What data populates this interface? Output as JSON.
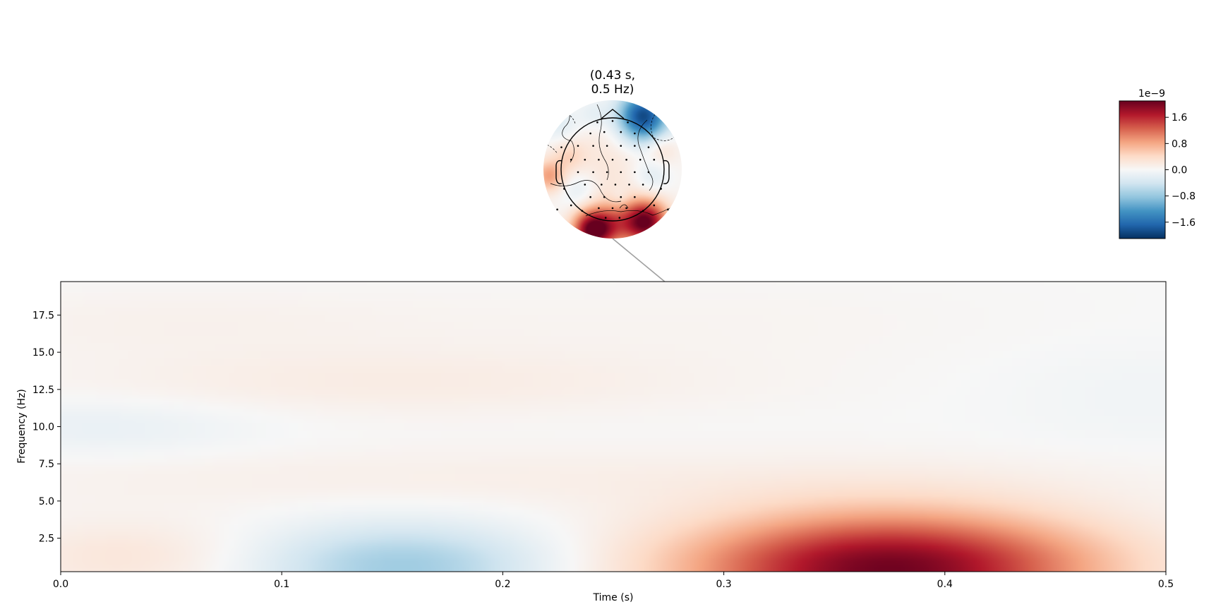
{
  "chart_data": [
    {
      "type": "heatmap",
      "title": "",
      "xlabel": "Time (s)",
      "ylabel": "Frequency (Hz)",
      "xlim": [
        0.0,
        0.5
      ],
      "ylim": [
        0.25,
        19.75
      ],
      "xticks": [
        0.0,
        0.1,
        0.2,
        0.3,
        0.4,
        0.5
      ],
      "xtick_labels": [
        "0.0",
        "0.1",
        "0.2",
        "0.3",
        "0.4",
        "0.5"
      ],
      "yticks": [
        2.5,
        5.0,
        7.5,
        10.0,
        12.5,
        15.0,
        17.5
      ],
      "ytick_labels": [
        "2.5",
        "5.0",
        "7.5",
        "10.0",
        "12.5",
        "15.0",
        "17.5"
      ],
      "colormap": "RdBu_r",
      "vlim": [
        -2.1e-09,
        2.1e-09
      ],
      "blobs": [
        {
          "t": 0.375,
          "f": 0.5,
          "amp": 2.05e-09,
          "st": 0.065,
          "sf": 2.6
        },
        {
          "t": 0.155,
          "f": 0.6,
          "amp": -7.5e-10,
          "st": 0.045,
          "sf": 2.0
        },
        {
          "t": 0.03,
          "f": 1.2,
          "amp": 2.5e-10,
          "st": 0.04,
          "sf": 1.8
        },
        {
          "t": 0.2,
          "f": 6.5,
          "amp": 1.2e-10,
          "st": 0.2,
          "sf": 1.5
        },
        {
          "t": 0.02,
          "f": 10.0,
          "amp": -1.6e-10,
          "st": 0.05,
          "sf": 1.4
        },
        {
          "t": 0.15,
          "f": 13.0,
          "amp": 1.6e-10,
          "st": 0.11,
          "sf": 1.6
        },
        {
          "t": 0.05,
          "f": 17.0,
          "amp": 9e-11,
          "st": 0.09,
          "sf": 1.6
        },
        {
          "t": 0.49,
          "f": 12.0,
          "amp": -7e-11,
          "st": 0.05,
          "sf": 2.5
        },
        {
          "t": 0.3,
          "f": 17.0,
          "amp": 5e-11,
          "st": 0.1,
          "sf": 2.0
        }
      ],
      "highlight": {
        "time": 0.43,
        "freq": 0.5,
        "line_color": "#a0a0a0"
      }
    },
    {
      "type": "topomap",
      "title_line1": "(0.43 s,",
      "title_line2": "0.5 Hz)",
      "time": 0.43,
      "freq": 0.5,
      "colormap": "RdBu_r",
      "blobs": [
        {
          "x": 0.72,
          "y": 0.88,
          "amp": -2.0,
          "s": 0.13
        },
        {
          "x": 0.35,
          "y": 0.06,
          "amp": 1.9,
          "s": 0.1
        },
        {
          "x": 0.74,
          "y": 0.12,
          "amp": 2.0,
          "s": 0.11
        },
        {
          "x": 0.5,
          "y": 0.1,
          "amp": 0.9,
          "s": 0.12
        },
        {
          "x": 0.04,
          "y": 0.45,
          "amp": 0.8,
          "s": 0.08
        },
        {
          "x": 0.5,
          "y": 0.55,
          "amp": 0.25,
          "s": 0.3
        },
        {
          "x": 0.25,
          "y": 0.35,
          "amp": -0.3,
          "s": 0.1
        },
        {
          "x": 0.78,
          "y": 0.45,
          "amp": -0.35,
          "s": 0.1
        },
        {
          "x": 0.12,
          "y": 0.82,
          "amp": -0.3,
          "s": 0.1
        },
        {
          "x": 0.36,
          "y": 0.9,
          "amp": -0.25,
          "s": 0.08
        },
        {
          "x": 0.55,
          "y": 0.3,
          "amp": -0.2,
          "s": 0.05
        },
        {
          "x": 0.18,
          "y": 0.6,
          "amp": 0.35,
          "s": 0.08
        },
        {
          "x": 0.85,
          "y": 0.65,
          "amp": 0.3,
          "s": 0.08
        }
      ],
      "sensors": [
        [
          0.39,
          0.84
        ],
        [
          0.5,
          0.85
        ],
        [
          0.61,
          0.84
        ],
        [
          0.34,
          0.76
        ],
        [
          0.44,
          0.77
        ],
        [
          0.56,
          0.77
        ],
        [
          0.66,
          0.76
        ],
        [
          0.13,
          0.66
        ],
        [
          0.25,
          0.67
        ],
        [
          0.36,
          0.67
        ],
        [
          0.46,
          0.67
        ],
        [
          0.56,
          0.67
        ],
        [
          0.66,
          0.67
        ],
        [
          0.76,
          0.66
        ],
        [
          0.2,
          0.57
        ],
        [
          0.3,
          0.57
        ],
        [
          0.4,
          0.57
        ],
        [
          0.5,
          0.57
        ],
        [
          0.6,
          0.57
        ],
        [
          0.7,
          0.57
        ],
        [
          0.8,
          0.57
        ],
        [
          0.25,
          0.48
        ],
        [
          0.36,
          0.48
        ],
        [
          0.46,
          0.48
        ],
        [
          0.56,
          0.48
        ],
        [
          0.66,
          0.48
        ],
        [
          0.76,
          0.48
        ],
        [
          0.3,
          0.39
        ],
        [
          0.42,
          0.39
        ],
        [
          0.52,
          0.39
        ],
        [
          0.62,
          0.39
        ],
        [
          0.72,
          0.39
        ],
        [
          0.15,
          0.36
        ],
        [
          0.85,
          0.36
        ],
        [
          0.34,
          0.3
        ],
        [
          0.44,
          0.3
        ],
        [
          0.56,
          0.3
        ],
        [
          0.66,
          0.3
        ],
        [
          0.2,
          0.24
        ],
        [
          0.4,
          0.22
        ],
        [
          0.5,
          0.22
        ],
        [
          0.6,
          0.22
        ],
        [
          0.8,
          0.24
        ],
        [
          0.1,
          0.21
        ],
        [
          0.9,
          0.21
        ],
        [
          0.45,
          0.15
        ],
        [
          0.55,
          0.15
        ],
        [
          0.28,
          0.2
        ],
        [
          0.72,
          0.2
        ]
      ]
    },
    {
      "type": "colorbar",
      "colormap": "RdBu_r",
      "vlim": [
        -2.1e-09,
        2.1e-09
      ],
      "exponent_label": "1e−9",
      "ticks": [
        -1.6,
        -0.8,
        0.0,
        0.8,
        1.6
      ],
      "tick_labels": [
        "−1.6",
        "−0.8",
        "0.0",
        "0.8",
        "1.6"
      ]
    }
  ]
}
